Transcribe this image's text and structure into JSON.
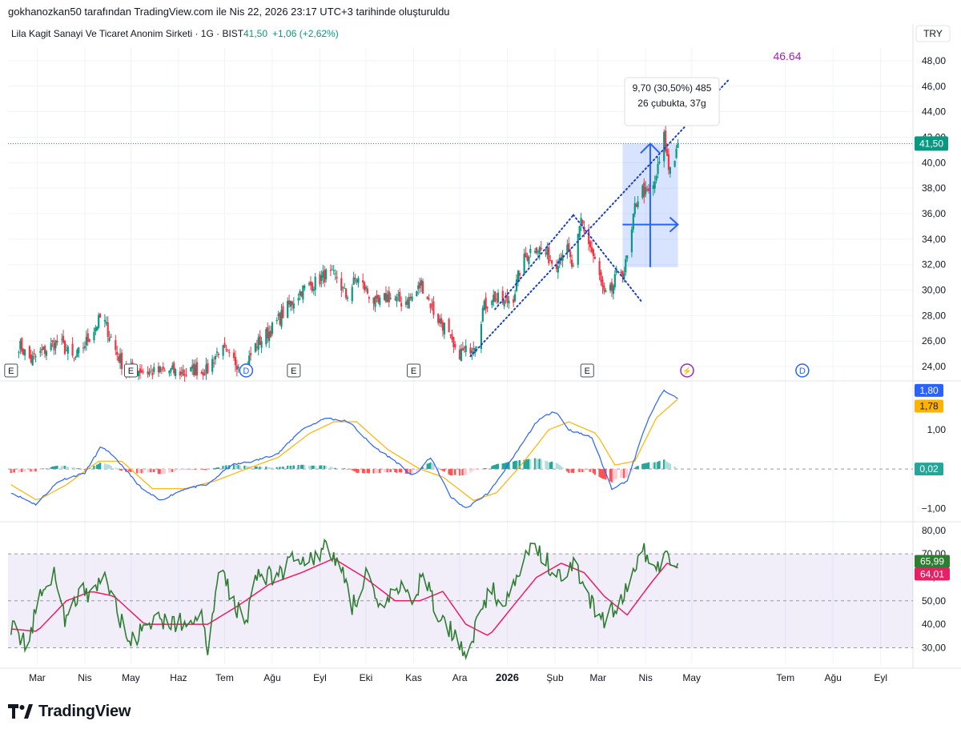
{
  "header": {
    "caption": "gokhanozkan50 tarafından TradingView.com ile Nis 22, 2026 23:17 UTC+3 tarihinde oluşturuldu"
  },
  "symbol": {
    "name": "Lila Kagit Sanayi Ve Ticaret Anonim Sirketi · 1G · BIST",
    "price": "41,50",
    "change": "+1,06 (+2,62%)",
    "currency": "TRY"
  },
  "colors": {
    "up": "#089981",
    "down": "#f23645",
    "macd": "#2962ff",
    "signal": "#ffb300",
    "rsi": "#2e7d32",
    "rsi_ma": "#e91e63",
    "annotation": "#9c27b0",
    "measure": "#2962ff"
  },
  "chart_data": [
    {
      "type": "candlestick",
      "panel": "price",
      "ylim": [
        23,
        49
      ],
      "y_ticks": [
        "24,00",
        "26,00",
        "28,00",
        "30,00",
        "32,00",
        "34,00",
        "36,00",
        "38,00",
        "40,00",
        "42,00",
        "44,00",
        "46,00",
        "48,00"
      ],
      "last_price_label": "41,50",
      "close_anchors": [
        [
          "2025-02-15",
          26.0
        ],
        [
          "2025-02-25",
          24.5
        ],
        [
          "2025-03-05",
          25.2
        ],
        [
          "2025-03-15",
          26.0
        ],
        [
          "2025-03-25",
          24.5
        ],
        [
          "2025-04-05",
          26.5
        ],
        [
          "2025-04-12",
          28.0
        ],
        [
          "2025-04-22",
          25.0
        ],
        [
          "2025-04-28",
          23.6
        ],
        [
          "2025-05-05",
          23.8
        ],
        [
          "2025-05-15",
          23.5
        ],
        [
          "2025-05-25",
          23.7
        ],
        [
          "2025-06-05",
          23.4
        ],
        [
          "2025-06-12",
          23.8
        ],
        [
          "2025-06-18",
          23.4
        ],
        [
          "2025-06-28",
          25.5
        ],
        [
          "2025-07-05",
          24.5
        ],
        [
          "2025-07-15",
          24.0
        ],
        [
          "2025-07-20",
          25.5
        ],
        [
          "2025-08-01",
          27.0
        ],
        [
          "2025-08-10",
          28.5
        ],
        [
          "2025-08-20",
          30.0
        ],
        [
          "2025-08-28",
          30.5
        ],
        [
          "2025-09-05",
          31.2
        ],
        [
          "2025-09-12",
          31.0
        ],
        [
          "2025-09-18",
          29.5
        ],
        [
          "2025-09-25",
          31.0
        ],
        [
          "2025-10-01",
          30.0
        ],
        [
          "2025-10-08",
          28.8
        ],
        [
          "2025-10-15",
          29.5
        ],
        [
          "2025-10-25",
          29.0
        ],
        [
          "2025-11-01",
          29.5
        ],
        [
          "2025-11-06",
          30.5
        ],
        [
          "2025-11-10",
          29.5
        ],
        [
          "2025-11-15",
          28.0
        ],
        [
          "2025-11-22",
          27.0
        ],
        [
          "2025-11-28",
          25.0
        ],
        [
          "2025-12-05",
          25.2
        ],
        [
          "2025-12-12",
          26.0
        ],
        [
          "2025-12-16",
          28.5
        ],
        [
          "2025-12-22",
          29.5
        ],
        [
          "2025-12-30",
          29.0
        ],
        [
          "2026-01-05",
          29.5
        ],
        [
          "2026-01-10",
          32.0
        ],
        [
          "2026-01-18",
          33.5
        ],
        [
          "2026-01-25",
          33.0
        ],
        [
          "2026-02-01",
          32.0
        ],
        [
          "2026-02-08",
          33.5
        ],
        [
          "2026-02-13",
          31.5
        ],
        [
          "2026-02-18",
          35.5
        ],
        [
          "2026-02-25",
          33.0
        ],
        [
          "2026-03-02",
          31.0
        ],
        [
          "2026-03-05",
          29.5
        ],
        [
          "2026-03-10",
          30.0
        ],
        [
          "2026-03-14",
          31.5
        ],
        [
          "2026-03-18",
          31.5
        ],
        [
          "2026-03-22",
          33.5
        ],
        [
          "2026-03-25",
          36.5
        ],
        [
          "2026-03-29",
          38.0
        ],
        [
          "2026-04-02",
          37.5
        ],
        [
          "2026-04-06",
          38.0
        ],
        [
          "2026-04-10",
          40.0
        ],
        [
          "2026-04-13",
          42.0
        ],
        [
          "2026-04-16",
          39.5
        ],
        [
          "2026-04-20",
          40.5
        ],
        [
          "2026-04-22",
          41.5
        ]
      ],
      "measure_box": {
        "from_date": "2026-03-17",
        "to_date": "2026-04-22",
        "low": 31.8,
        "high": 41.5,
        "label_1": "9,70 (30,50%) 485",
        "label_2": "26 çubukta, 37g"
      },
      "trendlines": [
        {
          "from": [
            "2025-12-08",
            24.8
          ],
          "to": [
            "2026-05-25",
            46.5
          ],
          "style": "dotted"
        },
        {
          "from": [
            "2026-02-13",
            35.9
          ],
          "to": [
            "2026-03-30",
            29.0
          ],
          "style": "dotted"
        },
        {
          "from": [
            "2025-12-24",
            28.5
          ],
          "to": [
            "2026-02-13",
            35.9
          ],
          "style": "dotted"
        }
      ],
      "target_label": "46.64",
      "event_markers": [
        {
          "date": "2025-02-12",
          "label": "E"
        },
        {
          "date": "2025-05-01",
          "label": "E"
        },
        {
          "date": "2025-07-15",
          "label": "D"
        },
        {
          "date": "2025-08-15",
          "label": "E"
        },
        {
          "date": "2025-11-01",
          "label": "E"
        },
        {
          "date": "2026-02-22",
          "label": "E"
        },
        {
          "date": "2026-04-28",
          "label": "⚡"
        },
        {
          "date": "2026-07-12",
          "label": "D"
        }
      ]
    },
    {
      "type": "line",
      "panel": "macd",
      "ylim": [
        -1.3,
        2.2
      ],
      "y_ticks": [
        "1,00",
        "−1,00"
      ],
      "last_values": {
        "macd": "1,80",
        "signal": "1,78",
        "histogram": "0,02"
      },
      "macd_anchors": [
        [
          "2025-02-12",
          -0.6
        ],
        [
          "2025-02-28",
          -0.9
        ],
        [
          "2025-03-15",
          -0.3
        ],
        [
          "2025-04-01",
          -0.1
        ],
        [
          "2025-04-12",
          0.6
        ],
        [
          "2025-04-25",
          0.1
        ],
        [
          "2025-05-08",
          -0.5
        ],
        [
          "2025-05-20",
          -0.8
        ],
        [
          "2025-06-05",
          -0.5
        ],
        [
          "2025-06-20",
          -0.4
        ],
        [
          "2025-07-05",
          0.1
        ],
        [
          "2025-07-20",
          0.2
        ],
        [
          "2025-08-05",
          0.4
        ],
        [
          "2025-08-20",
          1.0
        ],
        [
          "2025-09-05",
          1.3
        ],
        [
          "2025-09-20",
          1.2
        ],
        [
          "2025-10-05",
          0.6
        ],
        [
          "2025-10-20",
          0.2
        ],
        [
          "2025-11-01",
          -0.2
        ],
        [
          "2025-11-12",
          0.3
        ],
        [
          "2025-11-25",
          -0.7
        ],
        [
          "2025-12-05",
          -1.0
        ],
        [
          "2025-12-20",
          -0.6
        ],
        [
          "2026-01-05",
          0.3
        ],
        [
          "2026-01-20",
          1.2
        ],
        [
          "2026-02-01",
          1.5
        ],
        [
          "2026-02-10",
          1.0
        ],
        [
          "2026-02-25",
          0.8
        ],
        [
          "2026-03-10",
          -0.5
        ],
        [
          "2026-03-20",
          -0.3
        ],
        [
          "2026-04-01",
          1.1
        ],
        [
          "2026-04-12",
          2.0
        ],
        [
          "2026-04-22",
          1.8
        ]
      ],
      "signal_anchors": [
        [
          "2025-02-12",
          -0.4
        ],
        [
          "2025-03-01",
          -0.8
        ],
        [
          "2025-03-20",
          -0.4
        ],
        [
          "2025-04-10",
          0.2
        ],
        [
          "2025-04-25",
          0.2
        ],
        [
          "2025-05-15",
          -0.5
        ],
        [
          "2025-06-05",
          -0.5
        ],
        [
          "2025-06-25",
          -0.3
        ],
        [
          "2025-07-15",
          0.0
        ],
        [
          "2025-08-05",
          0.3
        ],
        [
          "2025-08-25",
          0.9
        ],
        [
          "2025-09-10",
          1.2
        ],
        [
          "2025-09-25",
          1.2
        ],
        [
          "2025-10-15",
          0.5
        ],
        [
          "2025-11-05",
          0.0
        ],
        [
          "2025-11-20",
          -0.2
        ],
        [
          "2025-12-10",
          -0.8
        ],
        [
          "2025-12-25",
          -0.6
        ],
        [
          "2026-01-10",
          0.1
        ],
        [
          "2026-01-28",
          1.0
        ],
        [
          "2026-02-10",
          1.2
        ],
        [
          "2026-02-28",
          0.9
        ],
        [
          "2026-03-12",
          0.1
        ],
        [
          "2026-03-25",
          0.2
        ],
        [
          "2026-04-08",
          1.3
        ],
        [
          "2026-04-22",
          1.78
        ]
      ]
    },
    {
      "type": "line",
      "panel": "rsi",
      "ylim": [
        23,
        83
      ],
      "y_ticks": [
        "30,00",
        "40,00",
        "50,00",
        "60,00",
        "70,00",
        "80,00"
      ],
      "levels": [
        70,
        50,
        30
      ],
      "last_values": {
        "rsi": "65,99",
        "rsi_ma": "64,01"
      },
      "rsi_anchors": [
        [
          "2025-02-12",
          40
        ],
        [
          "2025-02-22",
          30
        ],
        [
          "2025-03-05",
          58
        ],
        [
          "2025-03-12",
          62
        ],
        [
          "2025-03-20",
          40
        ],
        [
          "2025-03-28",
          55
        ],
        [
          "2025-04-05",
          50
        ],
        [
          "2025-04-12",
          62
        ],
        [
          "2025-04-22",
          48
        ],
        [
          "2025-04-28",
          32
        ],
        [
          "2025-05-10",
          37
        ],
        [
          "2025-05-20",
          42
        ],
        [
          "2025-06-05",
          40
        ],
        [
          "2025-06-15",
          45
        ],
        [
          "2025-06-20",
          28
        ],
        [
          "2025-06-28",
          65
        ],
        [
          "2025-07-08",
          48
        ],
        [
          "2025-07-15",
          42
        ],
        [
          "2025-07-22",
          62
        ],
        [
          "2025-08-05",
          60
        ],
        [
          "2025-08-15",
          70
        ],
        [
          "2025-08-25",
          68
        ],
        [
          "2025-09-05",
          72
        ],
        [
          "2025-09-15",
          65
        ],
        [
          "2025-09-22",
          48
        ],
        [
          "2025-10-01",
          60
        ],
        [
          "2025-10-10",
          45
        ],
        [
          "2025-10-20",
          55
        ],
        [
          "2025-11-01",
          52
        ],
        [
          "2025-11-08",
          62
        ],
        [
          "2025-11-15",
          45
        ],
        [
          "2025-11-25",
          38
        ],
        [
          "2025-12-05",
          28
        ],
        [
          "2025-12-12",
          40
        ],
        [
          "2025-12-20",
          55
        ],
        [
          "2025-12-30",
          50
        ],
        [
          "2026-01-05",
          55
        ],
        [
          "2026-01-15",
          72
        ],
        [
          "2026-01-25",
          68
        ],
        [
          "2026-02-05",
          60
        ],
        [
          "2026-02-15",
          65
        ],
        [
          "2026-02-25",
          48
        ],
        [
          "2026-03-05",
          40
        ],
        [
          "2026-03-12",
          48
        ],
        [
          "2026-03-20",
          55
        ],
        [
          "2026-03-30",
          72
        ],
        [
          "2026-04-08",
          62
        ],
        [
          "2026-04-14",
          74
        ],
        [
          "2026-04-18",
          60
        ],
        [
          "2026-04-22",
          66
        ]
      ],
      "rsi_ma_anchors": [
        [
          "2025-02-12",
          38
        ],
        [
          "2025-03-01",
          37
        ],
        [
          "2025-03-20",
          50
        ],
        [
          "2025-04-05",
          54
        ],
        [
          "2025-04-20",
          52
        ],
        [
          "2025-05-10",
          40
        ],
        [
          "2025-05-30",
          40
        ],
        [
          "2025-06-20",
          40
        ],
        [
          "2025-07-10",
          48
        ],
        [
          "2025-07-30",
          57
        ],
        [
          "2025-08-20",
          62
        ],
        [
          "2025-09-10",
          68
        ],
        [
          "2025-09-30",
          60
        ],
        [
          "2025-10-20",
          50
        ],
        [
          "2025-11-05",
          50
        ],
        [
          "2025-11-20",
          54
        ],
        [
          "2025-12-05",
          40
        ],
        [
          "2025-12-20",
          35
        ],
        [
          "2026-01-05",
          48
        ],
        [
          "2026-01-20",
          60
        ],
        [
          "2026-02-05",
          66
        ],
        [
          "2026-02-20",
          62
        ],
        [
          "2026-03-05",
          52
        ],
        [
          "2026-03-20",
          44
        ],
        [
          "2026-04-05",
          58
        ],
        [
          "2026-04-15",
          66
        ],
        [
          "2026-04-22",
          64
        ]
      ]
    }
  ],
  "x_axis": {
    "ticks": [
      {
        "date": "2025-03-01",
        "label": "Mar"
      },
      {
        "date": "2025-04-01",
        "label": "Nis"
      },
      {
        "date": "2025-05-01",
        "label": "May"
      },
      {
        "date": "2025-06-01",
        "label": "Haz"
      },
      {
        "date": "2025-07-01",
        "label": "Tem"
      },
      {
        "date": "2025-08-01",
        "label": "Ağu"
      },
      {
        "date": "2025-09-01",
        "label": "Eyl"
      },
      {
        "date": "2025-10-01",
        "label": "Eki"
      },
      {
        "date": "2025-11-01",
        "label": "Kas"
      },
      {
        "date": "2025-12-01",
        "label": "Ara"
      },
      {
        "date": "2026-01-01",
        "label": "2026",
        "bold": true
      },
      {
        "date": "2026-02-01",
        "label": "Şub"
      },
      {
        "date": "2026-03-01",
        "label": "Mar"
      },
      {
        "date": "2026-04-01",
        "label": "Nis"
      },
      {
        "date": "2026-05-01",
        "label": "May"
      },
      {
        "date": "2026-07-01",
        "label": "Tem"
      },
      {
        "date": "2026-08-01",
        "label": "Ağu"
      },
      {
        "date": "2026-09-01",
        "label": "Eyl"
      }
    ]
  },
  "footer": {
    "brand": "TradingView"
  }
}
